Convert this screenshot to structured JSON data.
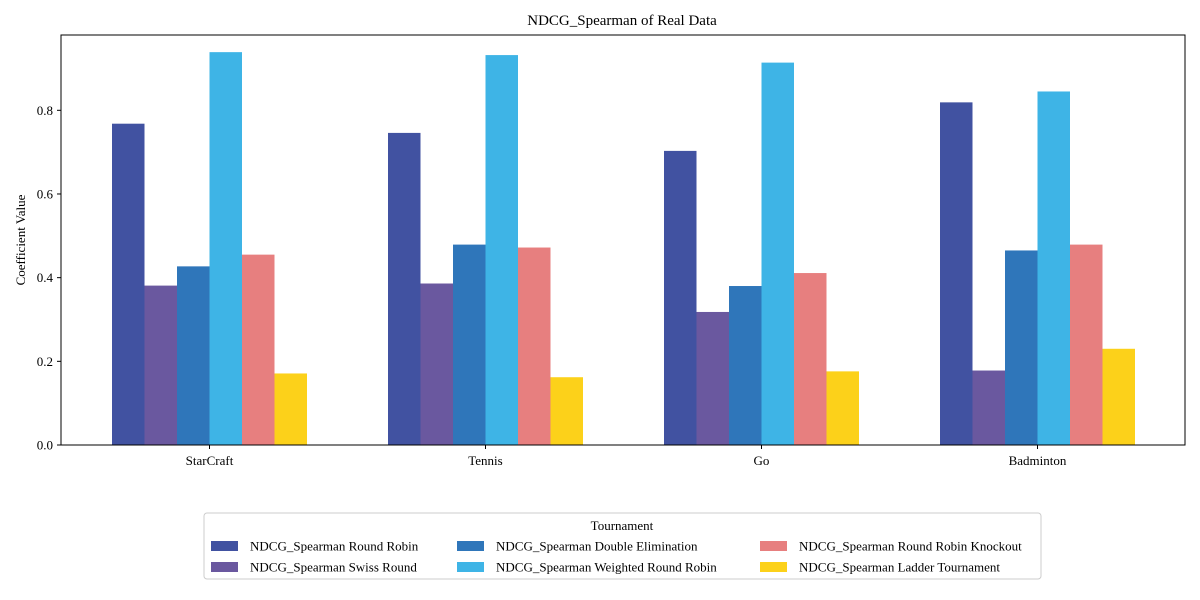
{
  "chart_data": {
    "type": "bar",
    "title": "NDCG_Spearman of Real Data",
    "xlabel": "",
    "ylabel": "Coefficient Value",
    "ylim": [
      0,
      0.98
    ],
    "yticks": [
      0.0,
      0.2,
      0.4,
      0.6,
      0.8
    ],
    "ytick_labels": [
      "0.0",
      "0.2",
      "0.4",
      "0.6",
      "0.8"
    ],
    "grid": false,
    "legend": {
      "title": "Tournament",
      "placement": "bottom-center",
      "columns": 3
    },
    "categories": [
      "StarCraft",
      "Tennis",
      "Go",
      "Badminton"
    ],
    "series": [
      {
        "name": "NDCG_Spearman Round Robin",
        "color": "#4152a1",
        "values": [
          0.768,
          0.746,
          0.703,
          0.819
        ]
      },
      {
        "name": "NDCG_Spearman Swiss Round",
        "color": "#6a589f",
        "values": [
          0.381,
          0.386,
          0.318,
          0.178
        ]
      },
      {
        "name": "NDCG_Spearman Double Elimination",
        "color": "#2f76ba",
        "values": [
          0.427,
          0.479,
          0.38,
          0.465
        ]
      },
      {
        "name": "NDCG_Spearman Weighted Round Robin",
        "color": "#3eb4e6",
        "values": [
          0.939,
          0.932,
          0.914,
          0.845
        ]
      },
      {
        "name": "NDCG_Spearman Round Robin Knockout",
        "color": "#e77f7f",
        "values": [
          0.455,
          0.472,
          0.411,
          0.479
        ]
      },
      {
        "name": "NDCG_Spearman Ladder Tournament",
        "color": "#fcd11a",
        "values": [
          0.171,
          0.162,
          0.176,
          0.23
        ]
      }
    ]
  }
}
